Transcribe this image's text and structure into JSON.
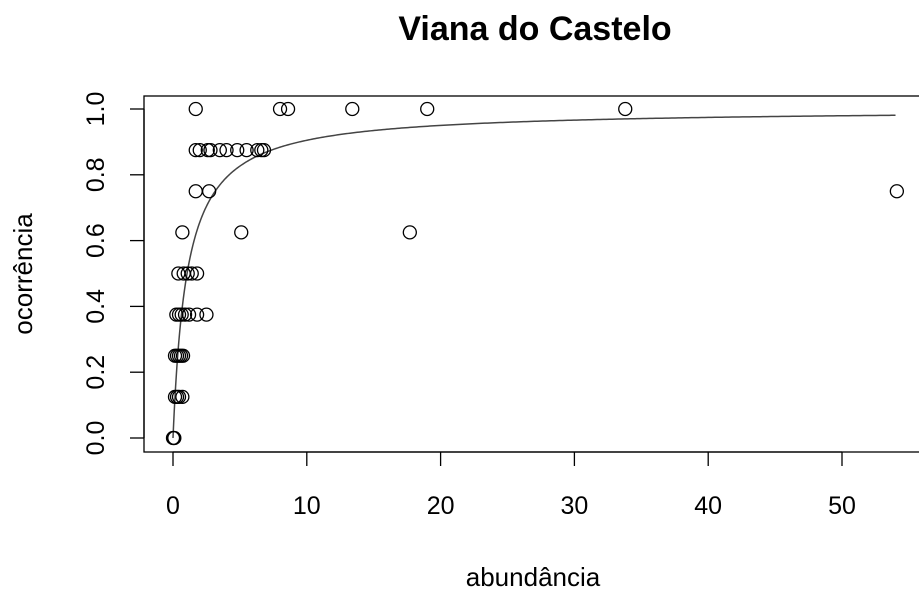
{
  "chart_data": {
    "type": "scatter",
    "title": "Viana do Castelo",
    "xlabel": "abundância",
    "ylabel": "ocorrência",
    "xlim": [
      -2,
      55
    ],
    "ylim": [
      -0.04,
      1.04
    ],
    "x_ticks": [
      0,
      10,
      20,
      30,
      40,
      50
    ],
    "x_tick_labels": [
      "0",
      "10",
      "20",
      "30",
      "40",
      "50"
    ],
    "y_ticks": [
      0.0,
      0.2,
      0.4,
      0.6,
      0.8,
      1.0
    ],
    "y_tick_labels": [
      "0.0",
      "0.2",
      "0.4",
      "0.6",
      "0.8",
      "1.0"
    ],
    "grid": false,
    "points": [
      {
        "x": 0.0,
        "y": 0.0
      },
      {
        "x": 0.05,
        "y": 0.0
      },
      {
        "x": 0.1,
        "y": 0.0
      },
      {
        "x": 0.15,
        "y": 0.125
      },
      {
        "x": 0.3,
        "y": 0.125
      },
      {
        "x": 0.45,
        "y": 0.125
      },
      {
        "x": 0.7,
        "y": 0.125
      },
      {
        "x": 0.15,
        "y": 0.25
      },
      {
        "x": 0.3,
        "y": 0.25
      },
      {
        "x": 0.45,
        "y": 0.25
      },
      {
        "x": 0.6,
        "y": 0.25
      },
      {
        "x": 0.75,
        "y": 0.25
      },
      {
        "x": 0.25,
        "y": 0.375
      },
      {
        "x": 0.45,
        "y": 0.375
      },
      {
        "x": 0.65,
        "y": 0.375
      },
      {
        "x": 0.9,
        "y": 0.375
      },
      {
        "x": 1.2,
        "y": 0.375
      },
      {
        "x": 1.8,
        "y": 0.375
      },
      {
        "x": 2.5,
        "y": 0.375
      },
      {
        "x": 0.4,
        "y": 0.5
      },
      {
        "x": 0.8,
        "y": 0.5
      },
      {
        "x": 1.1,
        "y": 0.5
      },
      {
        "x": 1.4,
        "y": 0.5
      },
      {
        "x": 1.8,
        "y": 0.5
      },
      {
        "x": 0.7,
        "y": 0.625
      },
      {
        "x": 5.1,
        "y": 0.625
      },
      {
        "x": 17.7,
        "y": 0.625
      },
      {
        "x": 1.7,
        "y": 0.75
      },
      {
        "x": 2.7,
        "y": 0.75
      },
      {
        "x": 54.1,
        "y": 0.75
      },
      {
        "x": 1.7,
        "y": 0.875
      },
      {
        "x": 2.0,
        "y": 0.875
      },
      {
        "x": 2.6,
        "y": 0.875
      },
      {
        "x": 2.8,
        "y": 0.875
      },
      {
        "x": 3.5,
        "y": 0.875
      },
      {
        "x": 4.0,
        "y": 0.875
      },
      {
        "x": 4.8,
        "y": 0.875
      },
      {
        "x": 5.5,
        "y": 0.875
      },
      {
        "x": 6.3,
        "y": 0.875
      },
      {
        "x": 6.6,
        "y": 0.875
      },
      {
        "x": 6.8,
        "y": 0.875
      },
      {
        "x": 1.7,
        "y": 1.0
      },
      {
        "x": 8.0,
        "y": 1.0
      },
      {
        "x": 8.6,
        "y": 1.0
      },
      {
        "x": 13.4,
        "y": 1.0
      },
      {
        "x": 19.0,
        "y": 1.0
      },
      {
        "x": 33.8,
        "y": 1.0
      }
    ],
    "fitted_curve": {
      "description": "saturating curve y = x/(k+x)",
      "k": 1.05,
      "x_range": [
        0,
        54
      ]
    }
  }
}
